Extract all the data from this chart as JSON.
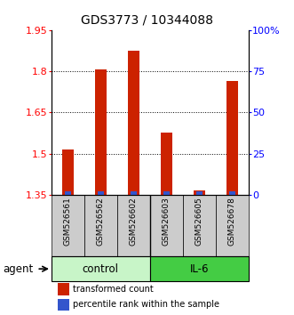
{
  "title": "GDS3773 / 10344088",
  "samples": [
    "GSM526561",
    "GSM526562",
    "GSM526602",
    "GSM526603",
    "GSM526605",
    "GSM526678"
  ],
  "red_values": [
    1.515,
    1.805,
    1.875,
    1.575,
    1.365,
    1.765
  ],
  "blue_values": [
    2.0,
    2.0,
    2.0,
    2.0,
    2.0,
    2.0
  ],
  "ylim_left": [
    1.35,
    1.95
  ],
  "ylim_right": [
    0,
    100
  ],
  "yticks_left": [
    1.35,
    1.5,
    1.65,
    1.8,
    1.95
  ],
  "yticks_right": [
    0,
    25,
    50,
    75,
    100
  ],
  "ytick_labels_right": [
    "0",
    "25",
    "50",
    "75",
    "100%"
  ],
  "groups": [
    {
      "label": "control",
      "indices": [
        0,
        1,
        2
      ],
      "color": "#c8f5c8"
    },
    {
      "label": "IL-6",
      "indices": [
        3,
        4,
        5
      ],
      "color": "#44cc44"
    }
  ],
  "agent_label": "agent",
  "red_color": "#cc2200",
  "blue_color": "#3355cc",
  "legend_red": "transformed count",
  "legend_blue": "percentile rank within the sample",
  "title_fontsize": 10,
  "tick_fontsize": 8,
  "label_fontsize": 6.5,
  "group_fontsize": 8.5,
  "legend_fontsize": 7
}
